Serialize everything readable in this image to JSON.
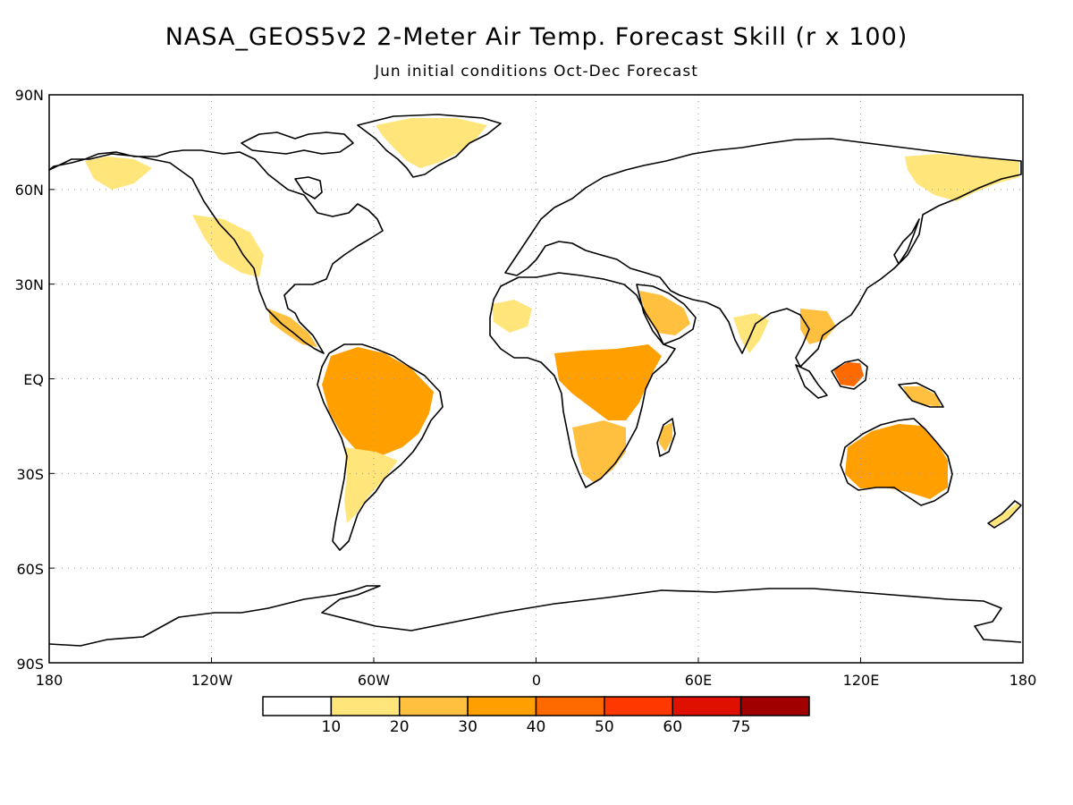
{
  "title": "NASA_GEOS5v2 2-Meter Air Temp. Forecast Skill (r x 100)",
  "subtitle": "Jun initial conditions  Oct-Dec Forecast",
  "map": {
    "lat_labels": [
      "90N",
      "60N",
      "30N",
      "EQ",
      "30S",
      "60S",
      "90S"
    ],
    "lon_labels": [
      "180",
      "120W",
      "60W",
      "0",
      "60E",
      "120E",
      "180"
    ],
    "gridlines": "dotted",
    "coastline_color": "#000000"
  },
  "colorbar": {
    "labels": [
      "10",
      "20",
      "30",
      "40",
      "50",
      "60",
      "75"
    ],
    "colors": [
      "#ffffff",
      "#ffe57a",
      "#ffc040",
      "#ffa000",
      "#ff6a00",
      "#ff3800",
      "#e01000",
      "#a00000"
    ]
  },
  "regions": [
    {
      "name": "amazon",
      "level": 3
    },
    {
      "name": "south-america-south",
      "level": 1
    },
    {
      "name": "central-africa",
      "level": 3
    },
    {
      "name": "southern-africa",
      "level": 2
    },
    {
      "name": "arabian-peninsula",
      "level": 2
    },
    {
      "name": "australia",
      "level": 3
    },
    {
      "name": "borneo",
      "level": 4
    },
    {
      "name": "greenland",
      "level": 1
    },
    {
      "name": "siberia-east",
      "level": 1
    },
    {
      "name": "alaska",
      "level": 1
    },
    {
      "name": "western-north-america",
      "level": 1
    },
    {
      "name": "central-america",
      "level": 2
    },
    {
      "name": "india",
      "level": 1
    },
    {
      "name": "southeast-asia",
      "level": 2
    },
    {
      "name": "madagascar",
      "level": 2
    },
    {
      "name": "new-zealand",
      "level": 1
    },
    {
      "name": "new-guinea",
      "level": 2
    },
    {
      "name": "sahel-west",
      "level": 1
    }
  ]
}
